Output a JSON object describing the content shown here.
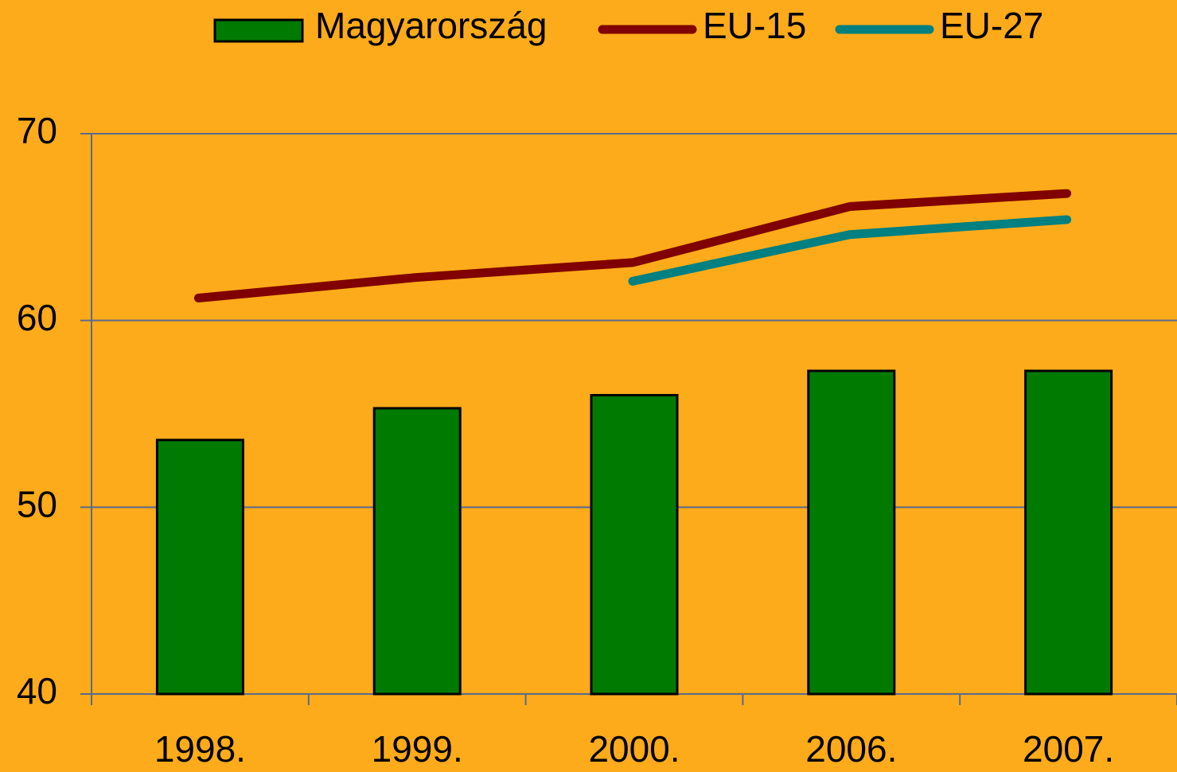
{
  "chart_data": {
    "type": "bar",
    "categories": [
      "1998.",
      "1999.",
      "2000.",
      "2006.",
      "2007."
    ],
    "series": [
      {
        "name": "Magyarország",
        "type": "bar",
        "color": "#007a00",
        "values": [
          53.6,
          55.3,
          56.0,
          57.3,
          57.3
        ]
      },
      {
        "name": "EU-15",
        "type": "line",
        "color": "#800000",
        "values": [
          61.2,
          62.3,
          63.1,
          66.1,
          66.8
        ]
      },
      {
        "name": "EU-27",
        "type": "line",
        "color": "#008080",
        "values": [
          null,
          null,
          62.1,
          64.6,
          65.4
        ]
      }
    ],
    "ylim": [
      40,
      70
    ],
    "yticks": [
      40,
      50,
      60,
      70
    ],
    "grid": true,
    "legend": "top"
  }
}
